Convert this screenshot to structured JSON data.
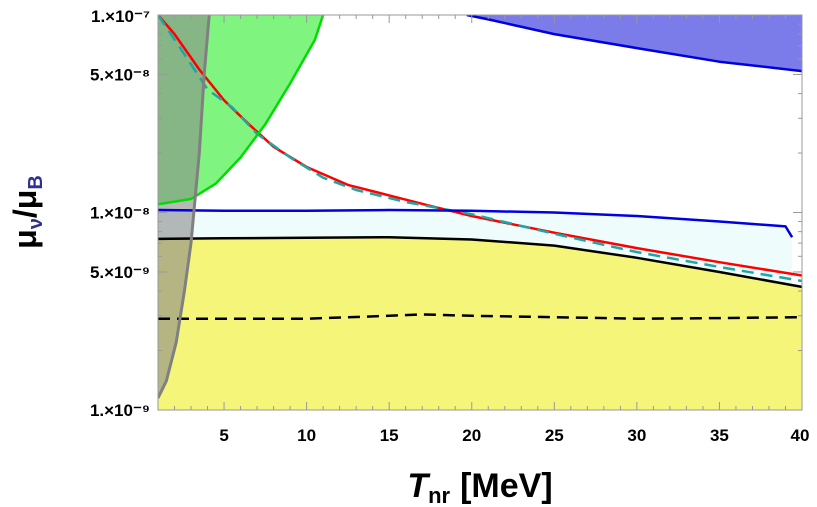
{
  "chart_data": {
    "type": "area",
    "title": "",
    "xlabel": {
      "symbol": "T",
      "subscript": "nr",
      "unit": "[MeV]"
    },
    "ylabel": {
      "numerator": "μ",
      "numerator_sub": "ν",
      "denominator": "μ",
      "denominator_sub": "B"
    },
    "xlim": [
      1,
      40
    ],
    "ylim": [
      1e-09,
      1e-07
    ],
    "yscale": "log",
    "grid": false,
    "x_ticks": [
      {
        "value": 5,
        "label": "5"
      },
      {
        "value": 10,
        "label": "10"
      },
      {
        "value": 15,
        "label": "15"
      },
      {
        "value": 20,
        "label": "20"
      },
      {
        "value": 25,
        "label": "25"
      },
      {
        "value": 30,
        "label": "30"
      },
      {
        "value": 35,
        "label": "35"
      },
      {
        "value": 40,
        "label": "40"
      }
    ],
    "y_ticks": [
      {
        "value": 1e-07,
        "label": "1.×10⁻⁷"
      },
      {
        "value": 5e-08,
        "label": "5.×10⁻⁸"
      },
      {
        "value": 1e-08,
        "label": "1.×10⁻⁸"
      },
      {
        "value": 5e-09,
        "label": "5.×10⁻⁹"
      },
      {
        "value": 1e-09,
        "label": "1.×10⁻⁹"
      }
    ],
    "regions": [
      {
        "color": "#f5f57a",
        "points": [
          [
            1,
            1e-09
          ],
          [
            40,
            1e-09
          ],
          [
            40,
            4.2e-09
          ],
          [
            35,
            5e-09
          ],
          [
            30,
            5.9e-09
          ],
          [
            25,
            6.8e-09
          ],
          [
            20,
            7.3e-09
          ],
          [
            15,
            7.5e-09
          ],
          [
            10,
            7.45e-09
          ],
          [
            5,
            7.4e-09
          ],
          [
            1,
            7.35e-09
          ]
        ]
      },
      {
        "color": "#eefcfc",
        "points": [
          [
            1,
            7.35e-09
          ],
          [
            5,
            7.4e-09
          ],
          [
            10,
            7.45e-09
          ],
          [
            15,
            7.5e-09
          ],
          [
            20,
            7.3e-09
          ],
          [
            25,
            6.8e-09
          ],
          [
            30,
            5.9e-09
          ],
          [
            35,
            5e-09
          ],
          [
            39.4,
            4.3e-09
          ],
          [
            39.4,
            7.5e-09
          ],
          [
            39,
            8.5e-09
          ],
          [
            35,
            9e-09
          ],
          [
            30,
            9.6e-09
          ],
          [
            25,
            1e-08
          ],
          [
            20,
            1.02e-08
          ],
          [
            15,
            1.03e-08
          ],
          [
            10,
            1.02e-08
          ],
          [
            5,
            1.02e-08
          ],
          [
            1,
            1.03e-08
          ]
        ]
      },
      {
        "color": "#7b7bea",
        "points": [
          [
            19.7,
            1e-07
          ],
          [
            40,
            1e-07
          ],
          [
            40,
            5.2e-08
          ],
          [
            35,
            5.8e-08
          ],
          [
            30,
            6.8e-08
          ],
          [
            25,
            8e-08
          ],
          [
            21,
            9.5e-08
          ]
        ]
      },
      {
        "color": "#7ff57f",
        "points": [
          [
            1,
            1e-07
          ],
          [
            11,
            1e-07
          ],
          [
            10.5,
            7.5e-08
          ],
          [
            9,
            4.5e-08
          ],
          [
            7.5,
            2.8e-08
          ],
          [
            6,
            1.9e-08
          ],
          [
            4.5,
            1.4e-08
          ],
          [
            3,
            1.17e-08
          ],
          [
            1,
            1.1e-08
          ]
        ]
      },
      {
        "color": "#8a8a8a",
        "opacity": 0.6,
        "points": [
          [
            1,
            1e-07
          ],
          [
            4.1,
            1e-07
          ],
          [
            3.8,
            5e-08
          ],
          [
            3.5,
            2e-08
          ],
          [
            3.0,
            7e-09
          ],
          [
            2.6,
            4e-09
          ],
          [
            2.1,
            2.2e-09
          ],
          [
            1.5,
            1.4e-09
          ],
          [
            1,
            1.15e-09
          ]
        ]
      }
    ],
    "series": [
      {
        "color": "#ff0000",
        "dash": "solid",
        "width": 2.5,
        "points": [
          [
            1,
            1e-07
          ],
          [
            2,
            8e-08
          ],
          [
            3.5,
            5.3e-08
          ],
          [
            5,
            3.7e-08
          ],
          [
            6.5,
            2.8e-08
          ],
          [
            8,
            2.15e-08
          ],
          [
            10,
            1.7e-08
          ],
          [
            12.5,
            1.38e-08
          ],
          [
            15,
            1.22e-08
          ],
          [
            17.5,
            1.08e-08
          ],
          [
            20,
            9.6e-09
          ],
          [
            25,
            7.9e-09
          ],
          [
            30,
            6.6e-09
          ],
          [
            35,
            5.6e-09
          ],
          [
            40,
            4.8e-09
          ]
        ]
      },
      {
        "color": "#1ea6a6",
        "dash": "dashed",
        "width": 2.5,
        "points": [
          [
            1,
            1e-07
          ],
          [
            2.5,
            6.5e-08
          ],
          [
            4,
            4.2e-08
          ],
          [
            5.5,
            3.4e-08
          ],
          [
            7,
            2.5e-08
          ],
          [
            9,
            1.9e-08
          ],
          [
            11,
            1.5e-08
          ],
          [
            13,
            1.3e-08
          ],
          [
            16,
            1.13e-08
          ],
          [
            20,
            9.8e-09
          ],
          [
            25,
            7.8e-09
          ],
          [
            30,
            6.3e-09
          ],
          [
            35,
            5.3e-09
          ],
          [
            40,
            4.5e-09
          ]
        ]
      },
      {
        "color": "#0000e0",
        "dash": "solid",
        "width": 2.5,
        "points": [
          [
            1,
            1.03e-08
          ],
          [
            5,
            1.02e-08
          ],
          [
            10,
            1.02e-08
          ],
          [
            15,
            1.03e-08
          ],
          [
            20,
            1.02e-08
          ],
          [
            25,
            1e-08
          ],
          [
            30,
            9.6e-09
          ],
          [
            35,
            9e-09
          ],
          [
            39,
            8.5e-09
          ],
          [
            39.4,
            7.5e-09
          ]
        ]
      },
      {
        "color": "#000000",
        "dash": "solid",
        "width": 2.5,
        "points": [
          [
            1,
            7.35e-09
          ],
          [
            5,
            7.4e-09
          ],
          [
            10,
            7.45e-09
          ],
          [
            15,
            7.5e-09
          ],
          [
            20,
            7.3e-09
          ],
          [
            25,
            6.8e-09
          ],
          [
            30,
            5.9e-09
          ],
          [
            35,
            5e-09
          ],
          [
            40,
            4.2e-09
          ]
        ]
      },
      {
        "color": "#000000",
        "dash": "dashed",
        "width": 2.5,
        "points": [
          [
            1,
            2.9e-09
          ],
          [
            10,
            2.9e-09
          ],
          [
            15,
            3e-09
          ],
          [
            17,
            3.05e-09
          ],
          [
            20,
            3e-09
          ],
          [
            25,
            2.95e-09
          ],
          [
            30,
            2.9e-09
          ],
          [
            35,
            2.92e-09
          ],
          [
            40,
            2.95e-09
          ]
        ]
      },
      {
        "color": "#0000e0",
        "dash": "solid",
        "width": 2.5,
        "points": [
          [
            19.7,
            1e-07
          ],
          [
            21,
            9.5e-08
          ],
          [
            25,
            8e-08
          ],
          [
            30,
            6.8e-08
          ],
          [
            35,
            5.8e-08
          ],
          [
            40,
            5.2e-08
          ]
        ]
      },
      {
        "color": "#00dd00",
        "dash": "solid",
        "width": 2.5,
        "points": [
          [
            11,
            1e-07
          ],
          [
            10.5,
            7.5e-08
          ],
          [
            9,
            4.5e-08
          ],
          [
            7.5,
            2.8e-08
          ],
          [
            6,
            1.9e-08
          ],
          [
            4.5,
            1.4e-08
          ],
          [
            3,
            1.17e-08
          ],
          [
            1,
            1.1e-08
          ]
        ]
      },
      {
        "color": "#808080",
        "dash": "solid",
        "width": 3,
        "points": [
          [
            4.1,
            1e-07
          ],
          [
            3.8,
            5e-08
          ],
          [
            3.5,
            2e-08
          ],
          [
            3.0,
            7e-09
          ],
          [
            2.6,
            4e-09
          ],
          [
            2.1,
            2.2e-09
          ],
          [
            1.5,
            1.4e-09
          ],
          [
            1,
            1.15e-09
          ]
        ]
      }
    ]
  }
}
